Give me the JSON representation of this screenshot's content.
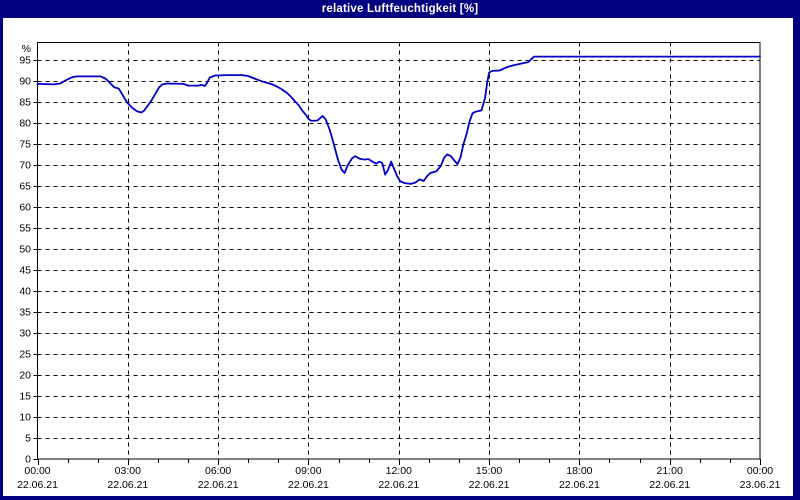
{
  "window": {
    "title": "relative Luftfeuchtigkeit [%]"
  },
  "colors": {
    "titlebar_bg": "#000080",
    "titlebar_text": "#ffffff",
    "frame": "#000080",
    "plot_background": "#ffffff",
    "plot_border": "#000000",
    "grid": "#000000",
    "tick_label": "#000000",
    "series_line": "#0000c8"
  },
  "chart_data": {
    "type": "line",
    "title": "relative Luftfeuchtigkeit [%]",
    "y_unit_label": "%",
    "y_min": 0,
    "y_max": 99,
    "y_tick_step": 5,
    "y_tick_labels": [
      "0",
      "5",
      "10",
      "15",
      "20",
      "25",
      "30",
      "35",
      "40",
      "45",
      "50",
      "55",
      "60",
      "65",
      "70",
      "75",
      "80",
      "85",
      "90",
      "95"
    ],
    "grid": {
      "horizontal_dashed": true,
      "vertical_dashed": true,
      "legend": "none"
    },
    "x_axis": {
      "minor_tick_every_hours": 1,
      "major_ticks": [
        {
          "hour": 0,
          "time": "00:00",
          "date": "22.06.21"
        },
        {
          "hour": 3,
          "time": "03:00",
          "date": "22.06.21"
        },
        {
          "hour": 6,
          "time": "06:00",
          "date": "22.06.21"
        },
        {
          "hour": 9,
          "time": "09:00",
          "date": "22.06.21"
        },
        {
          "hour": 12,
          "time": "12:00",
          "date": "22.06.21"
        },
        {
          "hour": 15,
          "time": "15:00",
          "date": "22.06.21"
        },
        {
          "hour": 18,
          "time": "18:00",
          "date": "22.06.21"
        },
        {
          "hour": 21,
          "time": "21:00",
          "date": "22.06.21"
        },
        {
          "hour": 24,
          "time": "00:00",
          "date": "23.06.21"
        }
      ]
    },
    "series": [
      {
        "name": "relative Luftfeuchtigkeit [%]",
        "color": "#0000c8",
        "points_hour_value": [
          [
            0.0,
            89.3
          ],
          [
            0.55,
            89.2
          ],
          [
            0.75,
            89.4
          ],
          [
            0.95,
            90.2
          ],
          [
            1.15,
            90.9
          ],
          [
            1.3,
            91.1
          ],
          [
            2.1,
            91.1
          ],
          [
            2.25,
            90.6
          ],
          [
            2.35,
            90.0
          ],
          [
            2.45,
            89.2
          ],
          [
            2.55,
            88.5
          ],
          [
            2.7,
            88.2
          ],
          [
            2.8,
            87.0
          ],
          [
            2.93,
            85.4
          ],
          [
            3.0,
            84.7
          ],
          [
            3.15,
            83.6
          ],
          [
            3.3,
            82.8
          ],
          [
            3.45,
            82.5
          ],
          [
            3.55,
            83.0
          ],
          [
            3.68,
            84.3
          ],
          [
            3.78,
            85.3
          ],
          [
            3.92,
            87.0
          ],
          [
            4.05,
            88.6
          ],
          [
            4.15,
            89.2
          ],
          [
            4.3,
            89.4
          ],
          [
            4.85,
            89.3
          ],
          [
            5.0,
            88.9
          ],
          [
            5.35,
            88.9
          ],
          [
            5.45,
            89.1
          ],
          [
            5.55,
            88.8
          ],
          [
            5.62,
            89.4
          ],
          [
            5.72,
            90.8
          ],
          [
            5.9,
            91.3
          ],
          [
            6.3,
            91.4
          ],
          [
            6.8,
            91.4
          ],
          [
            7.0,
            91.2
          ],
          [
            7.2,
            90.6
          ],
          [
            7.35,
            90.2
          ],
          [
            7.5,
            89.8
          ],
          [
            7.8,
            89.2
          ],
          [
            7.95,
            88.7
          ],
          [
            8.1,
            88.1
          ],
          [
            8.3,
            87.1
          ],
          [
            8.45,
            86.0
          ],
          [
            8.55,
            85.2
          ],
          [
            8.68,
            84.2
          ],
          [
            8.8,
            82.9
          ],
          [
            8.93,
            81.8
          ],
          [
            9.0,
            81.0
          ],
          [
            9.1,
            80.5
          ],
          [
            9.3,
            80.6
          ],
          [
            9.47,
            81.7
          ],
          [
            9.57,
            80.9
          ],
          [
            9.7,
            78.5
          ],
          [
            9.85,
            74.8
          ],
          [
            9.98,
            71.3
          ],
          [
            10.1,
            68.9
          ],
          [
            10.2,
            68.1
          ],
          [
            10.3,
            69.9
          ],
          [
            10.45,
            71.6
          ],
          [
            10.55,
            72.1
          ],
          [
            10.7,
            71.5
          ],
          [
            10.85,
            71.3
          ],
          [
            11.0,
            71.4
          ],
          [
            11.1,
            70.9
          ],
          [
            11.25,
            70.3
          ],
          [
            11.35,
            70.8
          ],
          [
            11.45,
            70.5
          ],
          [
            11.55,
            67.7
          ],
          [
            11.65,
            68.9
          ],
          [
            11.75,
            70.8
          ],
          [
            11.85,
            69.0
          ],
          [
            11.95,
            67.3
          ],
          [
            12.05,
            66.1
          ],
          [
            12.2,
            65.7
          ],
          [
            12.4,
            65.5
          ],
          [
            12.55,
            65.8
          ],
          [
            12.7,
            66.6
          ],
          [
            12.83,
            66.2
          ],
          [
            12.95,
            67.4
          ],
          [
            13.05,
            68.1
          ],
          [
            13.25,
            68.5
          ],
          [
            13.4,
            69.8
          ],
          [
            13.5,
            71.6
          ],
          [
            13.6,
            72.5
          ],
          [
            13.72,
            72.2
          ],
          [
            13.82,
            71.3
          ],
          [
            13.95,
            70.2
          ],
          [
            14.05,
            71.8
          ],
          [
            14.15,
            75.0
          ],
          [
            14.25,
            77.3
          ],
          [
            14.35,
            80.3
          ],
          [
            14.45,
            82.3
          ],
          [
            14.55,
            82.7
          ],
          [
            14.75,
            83.0
          ],
          [
            14.87,
            86.0
          ],
          [
            14.93,
            89.3
          ],
          [
            15.0,
            92.0
          ],
          [
            15.1,
            92.4
          ],
          [
            15.35,
            92.5
          ],
          [
            15.6,
            93.3
          ],
          [
            15.85,
            93.8
          ],
          [
            16.1,
            94.2
          ],
          [
            16.3,
            94.5
          ],
          [
            16.4,
            95.2
          ],
          [
            16.5,
            95.8
          ],
          [
            18.0,
            95.8
          ],
          [
            21.0,
            95.8
          ],
          [
            24.0,
            95.8
          ]
        ]
      }
    ]
  }
}
